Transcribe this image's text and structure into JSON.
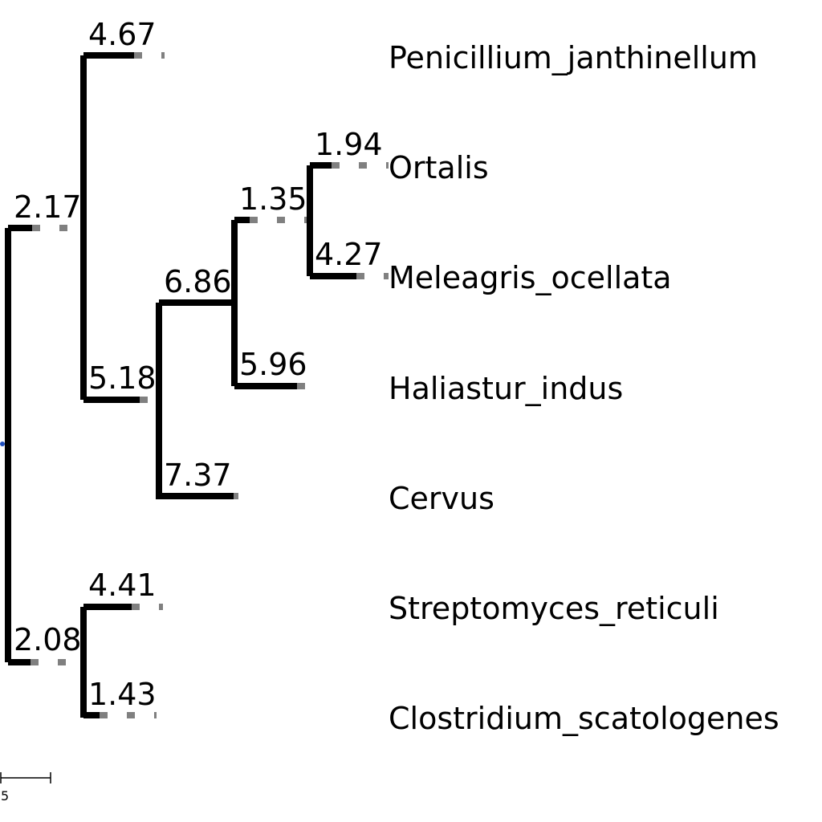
{
  "tree": {
    "leaves": [
      {
        "id": "L1",
        "name": "Penicillium_janthinellum"
      },
      {
        "id": "L2",
        "name": "Ortalis"
      },
      {
        "id": "L3",
        "name": "Meleagris_ocellata"
      },
      {
        "id": "L4",
        "name": "Haliastur_indus"
      },
      {
        "id": "L5",
        "name": "Cervus"
      },
      {
        "id": "L6",
        "name": "Streptomyces_reticuli"
      },
      {
        "id": "L7",
        "name": "Clostridium_scatologenes"
      }
    ],
    "branch_lengths": {
      "A": "2.17",
      "L1": "4.67",
      "B": "5.18",
      "C": "6.86",
      "D": "1.35",
      "L2": "1.94",
      "L3": "4.27",
      "L4": "5.96",
      "L5": "7.37",
      "E": "2.08",
      "L6": "4.41",
      "L7": "1.43"
    },
    "scale_bar": {
      "label": "5"
    },
    "colors": {
      "branch": "#000000",
      "guide": "#808080",
      "root_dot": "#1f4fbf"
    }
  }
}
